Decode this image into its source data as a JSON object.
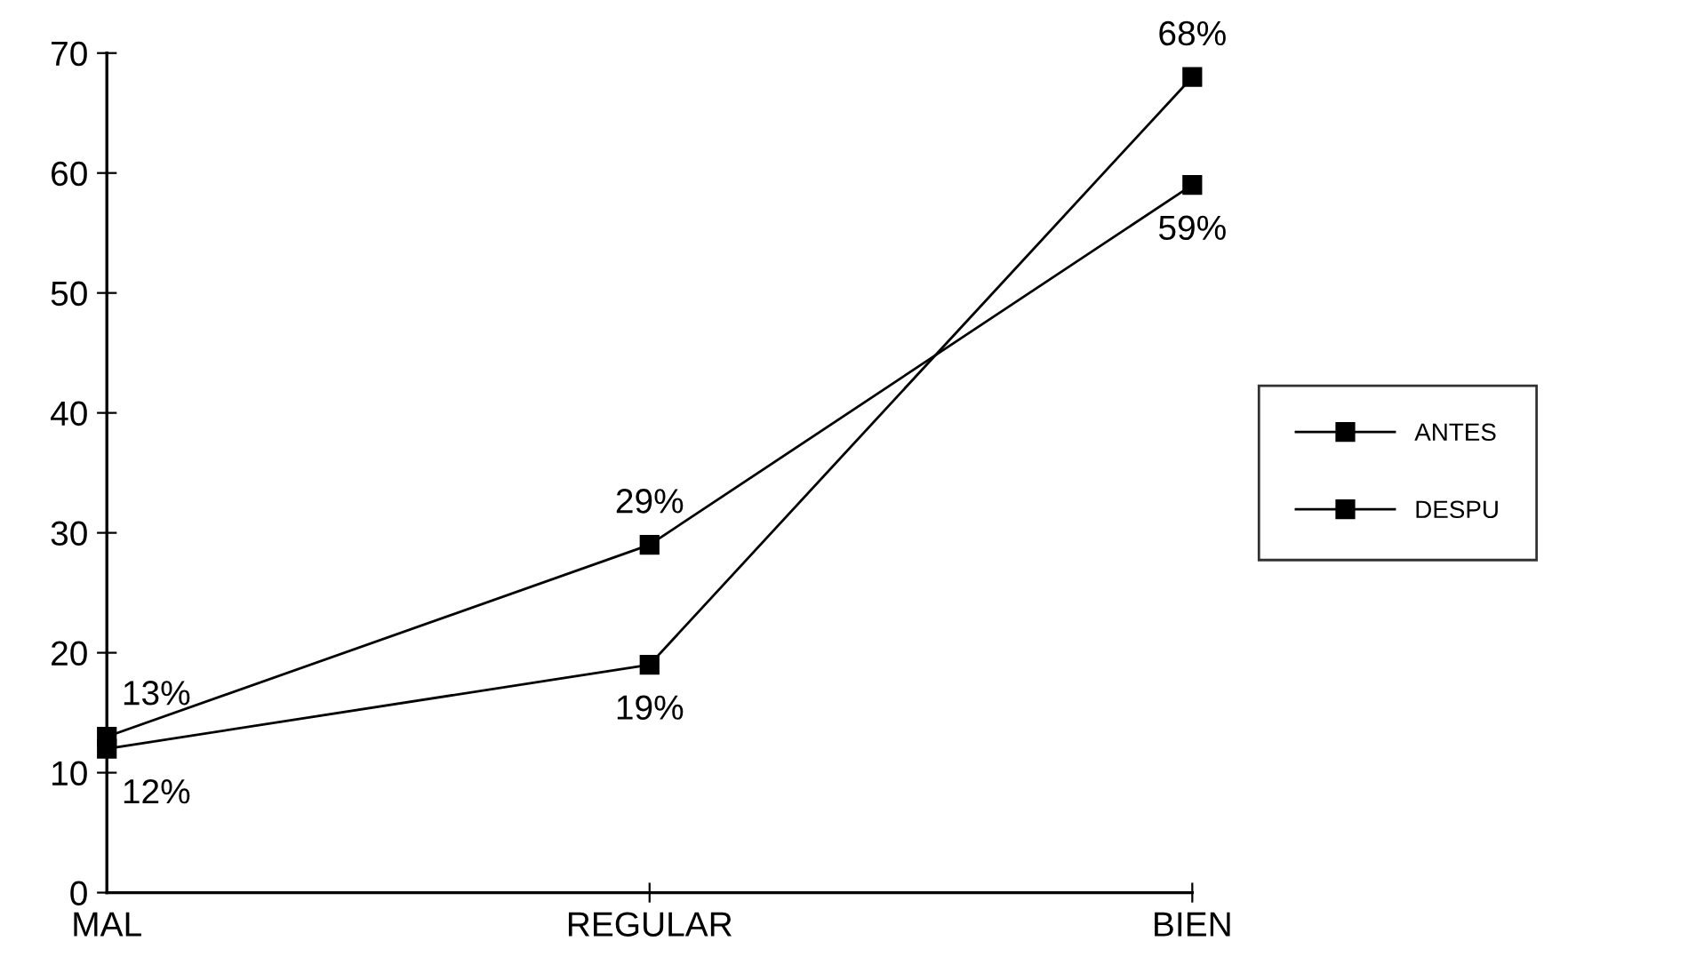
{
  "chart_data": {
    "type": "line",
    "categories": [
      "MAL",
      "REGULAR",
      "BIEN"
    ],
    "series": [
      {
        "name": "ANTES",
        "color": "#000000",
        "values": [
          13,
          29,
          59
        ],
        "value_labels": [
          "13%",
          "29%",
          "59%"
        ]
      },
      {
        "name": "DESPU",
        "color": "#000000",
        "values": [
          12,
          19,
          68
        ],
        "value_labels": [
          "12%",
          "19%",
          "68%"
        ]
      }
    ],
    "ylim": [
      0,
      70
    ],
    "yticks": [
      0,
      10,
      20,
      30,
      40,
      50,
      60,
      70
    ],
    "grid": false,
    "legend": "right",
    "marker": "square",
    "line_style": "solid"
  }
}
